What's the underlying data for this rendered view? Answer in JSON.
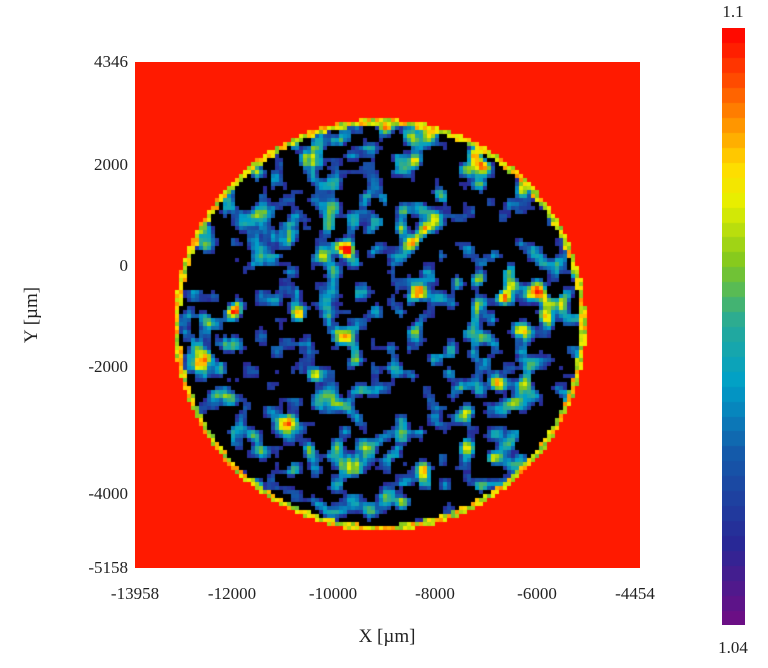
{
  "chart_data": {
    "type": "heatmap",
    "title": "",
    "xlabel": "X [µm]",
    "ylabel": "Y [µm]",
    "xlim": [
      -13958,
      -4454
    ],
    "ylim": [
      -5158,
      4346
    ],
    "xticks": [
      "-13958",
      "-12000",
      "-10000",
      "-8000",
      "-6000",
      "-4454"
    ],
    "yticks": [
      "4346",
      "2000",
      "0",
      "-2000",
      "-4000",
      "-5158"
    ],
    "colorbar": {
      "min": "1.04",
      "max": "1.1",
      "colormap": "jet (purple-blue-cyan-green-yellow-red)"
    },
    "background_color": "#ff1a00",
    "low_color": "#000000",
    "description_of_field": "circular sample region with speckled values mostly at or below 1.04, surrounded by values at or above 1.1"
  }
}
